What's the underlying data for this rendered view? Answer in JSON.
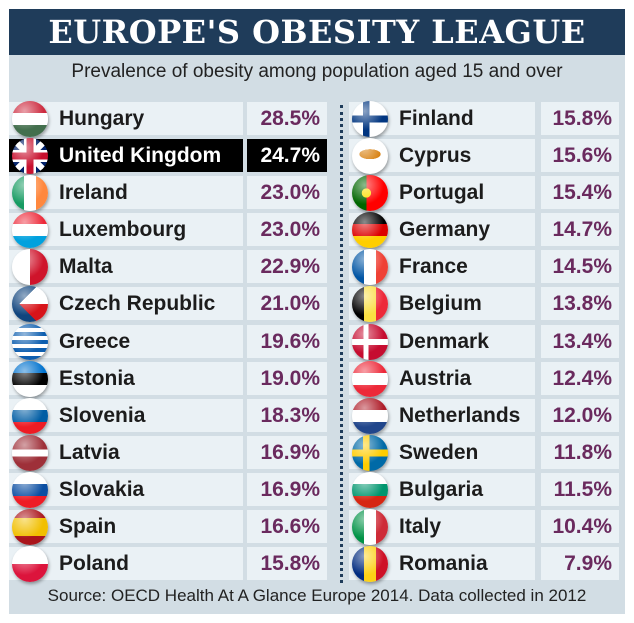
{
  "header": {
    "title": "EUROPE'S OBESITY LEAGUE",
    "subtitle": "Prevalence of obesity among population aged 15 and over"
  },
  "footer": {
    "source": "Source: OECD Health At A Glance Europe 2014. Data collected in 2012"
  },
  "colors": {
    "title_bar": "#1f3c5a",
    "panel": "#d2dde4",
    "cell": "#eaf1f5",
    "value_text": "#6a2a5e",
    "highlight": "#000000"
  },
  "chart_data": {
    "type": "table",
    "title": "EUROPE'S OBESITY LEAGUE",
    "subtitle": "Prevalence of obesity among population aged 15 and over",
    "highlighted": "United Kingdom",
    "rows": [
      {
        "country": "Hungary",
        "value": 28.5,
        "label": "28.5%",
        "flag": "hungary-flag-icon"
      },
      {
        "country": "United Kingdom",
        "value": 24.7,
        "label": "24.7%",
        "flag": "uk-flag-icon"
      },
      {
        "country": "Ireland",
        "value": 23.0,
        "label": "23.0%",
        "flag": "ireland-flag-icon"
      },
      {
        "country": "Luxembourg",
        "value": 23.0,
        "label": "23.0%",
        "flag": "luxembourg-flag-icon"
      },
      {
        "country": "Malta",
        "value": 22.9,
        "label": "22.9%",
        "flag": "malta-flag-icon"
      },
      {
        "country": "Czech Republic",
        "value": 21.0,
        "label": "21.0%",
        "flag": "czech-flag-icon"
      },
      {
        "country": "Greece",
        "value": 19.6,
        "label": "19.6%",
        "flag": "greece-flag-icon"
      },
      {
        "country": "Estonia",
        "value": 19.0,
        "label": "19.0%",
        "flag": "estonia-flag-icon"
      },
      {
        "country": "Slovenia",
        "value": 18.3,
        "label": "18.3%",
        "flag": "slovenia-flag-icon"
      },
      {
        "country": "Latvia",
        "value": 16.9,
        "label": "16.9%",
        "flag": "latvia-flag-icon"
      },
      {
        "country": "Slovakia",
        "value": 16.9,
        "label": "16.9%",
        "flag": "slovakia-flag-icon"
      },
      {
        "country": "Spain",
        "value": 16.6,
        "label": "16.6%",
        "flag": "spain-flag-icon"
      },
      {
        "country": "Poland",
        "value": 15.8,
        "label": "15.8%",
        "flag": "poland-flag-icon"
      },
      {
        "country": "Finland",
        "value": 15.8,
        "label": "15.8%",
        "flag": "finland-flag-icon"
      },
      {
        "country": "Cyprus",
        "value": 15.6,
        "label": "15.6%",
        "flag": "cyprus-flag-icon"
      },
      {
        "country": "Portugal",
        "value": 15.4,
        "label": "15.4%",
        "flag": "portugal-flag-icon"
      },
      {
        "country": "Germany",
        "value": 14.7,
        "label": "14.7%",
        "flag": "germany-flag-icon"
      },
      {
        "country": "France",
        "value": 14.5,
        "label": "14.5%",
        "flag": "france-flag-icon"
      },
      {
        "country": "Belgium",
        "value": 13.8,
        "label": "13.8%",
        "flag": "belgium-flag-icon"
      },
      {
        "country": "Denmark",
        "value": 13.4,
        "label": "13.4%",
        "flag": "denmark-flag-icon"
      },
      {
        "country": "Austria",
        "value": 12.4,
        "label": "12.4%",
        "flag": "austria-flag-icon"
      },
      {
        "country": "Netherlands",
        "value": 12.0,
        "label": "12.0%",
        "flag": "netherlands-flag-icon"
      },
      {
        "country": "Sweden",
        "value": 11.8,
        "label": "11.8%",
        "flag": "sweden-flag-icon"
      },
      {
        "country": "Bulgaria",
        "value": 11.5,
        "label": "11.5%",
        "flag": "bulgaria-flag-icon"
      },
      {
        "country": "Italy",
        "value": 10.4,
        "label": "10.4%",
        "flag": "italy-flag-icon"
      },
      {
        "country": "Romania",
        "value": 7.9,
        "label": "7.9%",
        "flag": "romania-flag-icon"
      }
    ]
  }
}
